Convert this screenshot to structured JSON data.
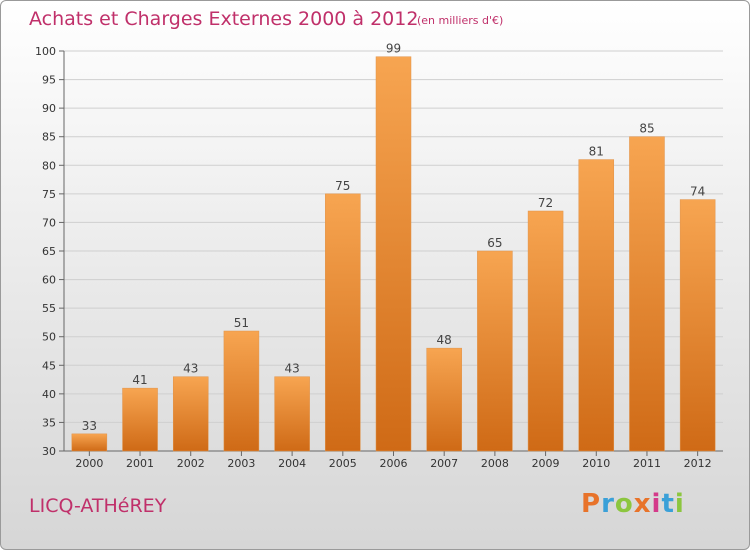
{
  "header": {
    "title": "Achats et Charges Externes 2000 à 2012",
    "subtitle": "(en milliers d'€)"
  },
  "footer": {
    "place": "LICQ-ATHéREY",
    "logo_text": "Proxiti",
    "logo_colors": [
      "#e8732a",
      "#3aa0d8",
      "#8cc63f",
      "#e8732a",
      "#d43a8a",
      "#3aa0d8",
      "#8cc63f"
    ]
  },
  "chart_data": {
    "type": "bar",
    "title": "Achats et Charges Externes 2000 à 2012",
    "subtitle": "(en milliers d'€)",
    "xlabel": "",
    "ylabel": "",
    "categories": [
      "2000",
      "2001",
      "2002",
      "2003",
      "2004",
      "2005",
      "2006",
      "2007",
      "2008",
      "2009",
      "2010",
      "2011",
      "2012"
    ],
    "values": [
      33,
      41,
      43,
      51,
      43,
      75,
      99,
      48,
      65,
      72,
      81,
      85,
      74
    ],
    "ylim": [
      30,
      100
    ],
    "yticks": [
      30,
      35,
      40,
      45,
      50,
      55,
      60,
      65,
      70,
      75,
      80,
      85,
      90,
      95,
      100
    ],
    "grid": true,
    "bar_color": "#f08a2c",
    "grid_color": "#cfcfcf"
  }
}
